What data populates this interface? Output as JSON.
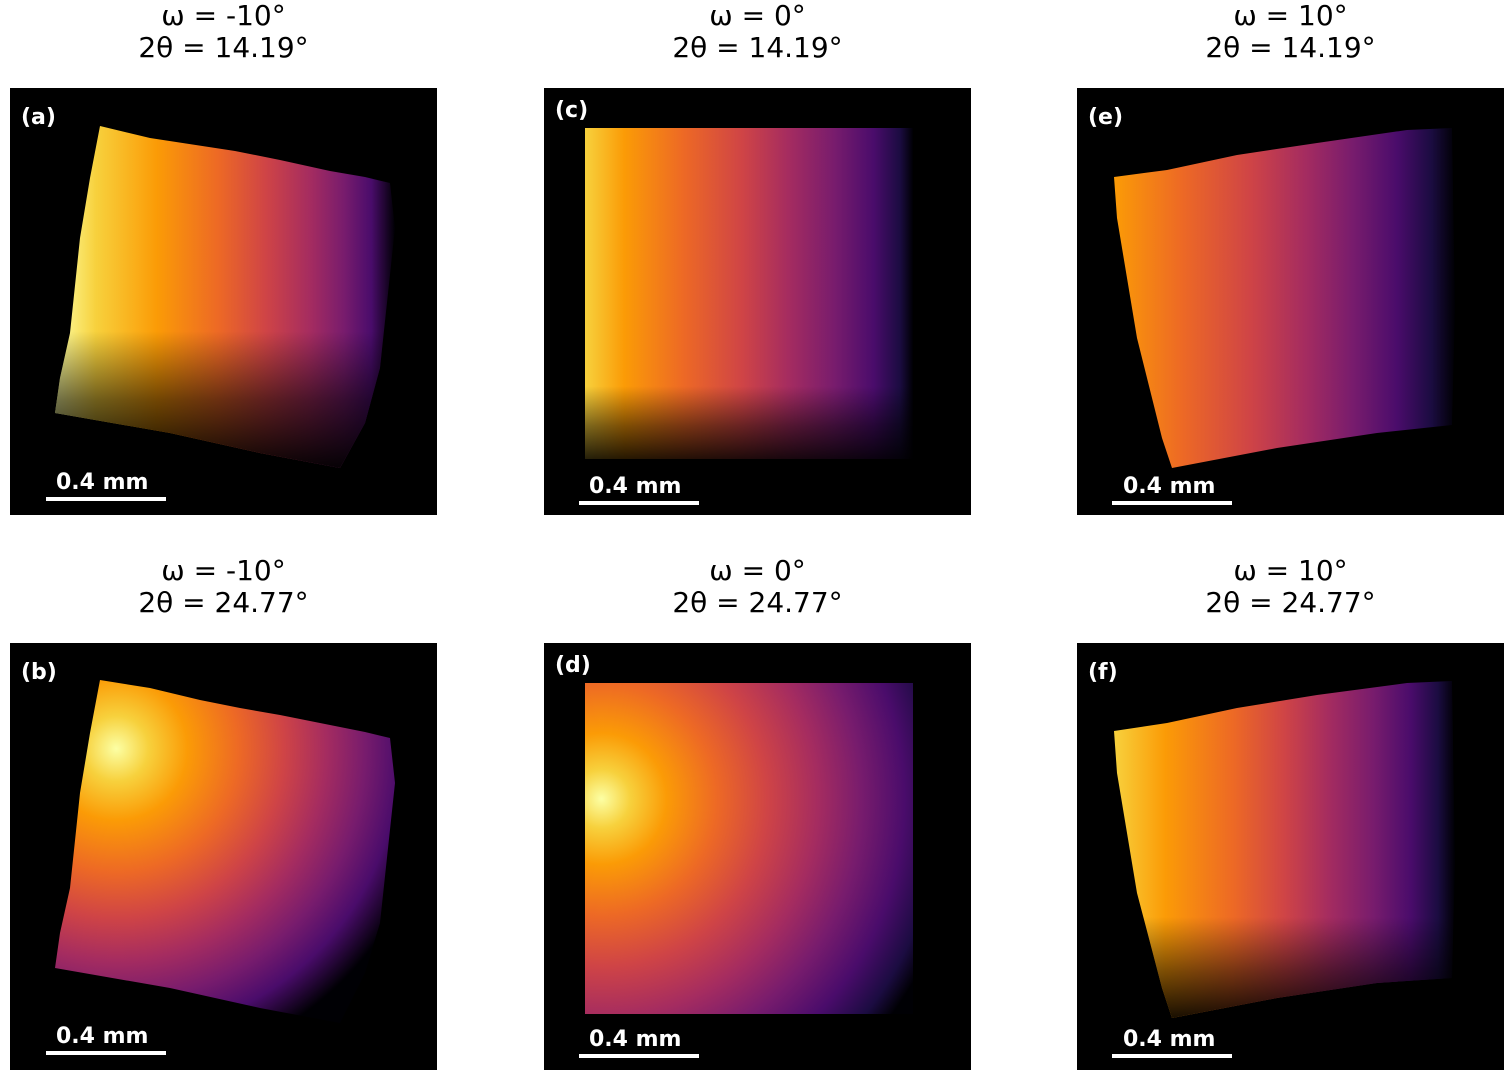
{
  "panels": [
    {
      "id": "a",
      "label": "(a)",
      "omega": "ω = -10°",
      "two_theta": "2θ = 14.19°",
      "scalebar": "0.4 mm"
    },
    {
      "id": "b",
      "label": "(b)",
      "omega": "ω = -10°",
      "two_theta": "2θ = 24.77°",
      "scalebar": "0.4 mm"
    },
    {
      "id": "c",
      "label": "(c)",
      "omega": "ω = 0°",
      "two_theta": "2θ = 14.19°",
      "scalebar": "0.4 mm"
    },
    {
      "id": "d",
      "label": "(d)",
      "omega": "ω = 0°",
      "two_theta": "2θ = 24.77°",
      "scalebar": "0.4 mm"
    },
    {
      "id": "e",
      "label": "(e)",
      "omega": "ω = 10°",
      "two_theta": "2θ = 14.19°",
      "scalebar": "0.4 mm"
    },
    {
      "id": "f",
      "label": "(f)",
      "omega": "ω = 10°",
      "two_theta": "2θ = 24.77°",
      "scalebar": "0.4 mm"
    }
  ],
  "colormap": [
    "#000004",
    "#1b0c41",
    "#4a0c6b",
    "#781c6d",
    "#a52c60",
    "#cf4446",
    "#ed6925",
    "#fb9b06",
    "#f7d13d",
    "#fcffa4"
  ]
}
